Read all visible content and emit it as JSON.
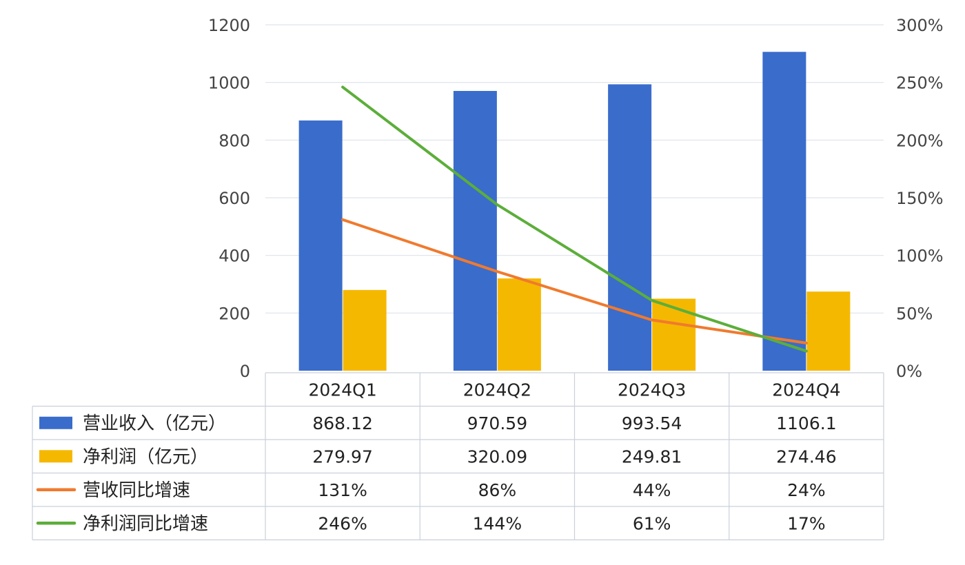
{
  "chart_data": {
    "type": "bar",
    "title": "",
    "categories": [
      "2024Q1",
      "2024Q2",
      "2024Q3",
      "2024Q4"
    ],
    "y_left": {
      "ylim": [
        0,
        1200
      ],
      "ticks": [
        "0",
        "200",
        "400",
        "600",
        "800",
        "1000",
        "1200"
      ]
    },
    "y_right": {
      "ylim": [
        0,
        300
      ],
      "ticks": [
        "0%",
        "50%",
        "100%",
        "150%",
        "200%",
        "250%",
        "300%"
      ]
    },
    "grid": true,
    "series": [
      {
        "name": "营业收入（亿元）",
        "type": "bar",
        "axis": "left",
        "color": "#3A6CCB",
        "values": [
          868.12,
          970.59,
          993.54,
          1106.1
        ],
        "labels": [
          "868.12",
          "970.59",
          "993.54",
          "1106.1"
        ]
      },
      {
        "name": "净利润（亿元）",
        "type": "bar",
        "axis": "left",
        "color": "#F5B800",
        "values": [
          279.97,
          320.09,
          249.81,
          274.46
        ],
        "labels": [
          "279.97",
          "320.09",
          "249.81",
          "274.46"
        ]
      },
      {
        "name": "营收同比增速",
        "type": "line",
        "axis": "right",
        "color": "#F07A2E",
        "values": [
          131,
          86,
          44,
          24
        ],
        "labels": [
          "131%",
          "86%",
          "44%",
          "24%"
        ]
      },
      {
        "name": "净利润同比增速",
        "type": "line",
        "axis": "right",
        "color": "#5CAE3A",
        "values": [
          246,
          144,
          61,
          17
        ],
        "labels": [
          "246%",
          "144%",
          "61%",
          "17%"
        ]
      }
    ]
  }
}
